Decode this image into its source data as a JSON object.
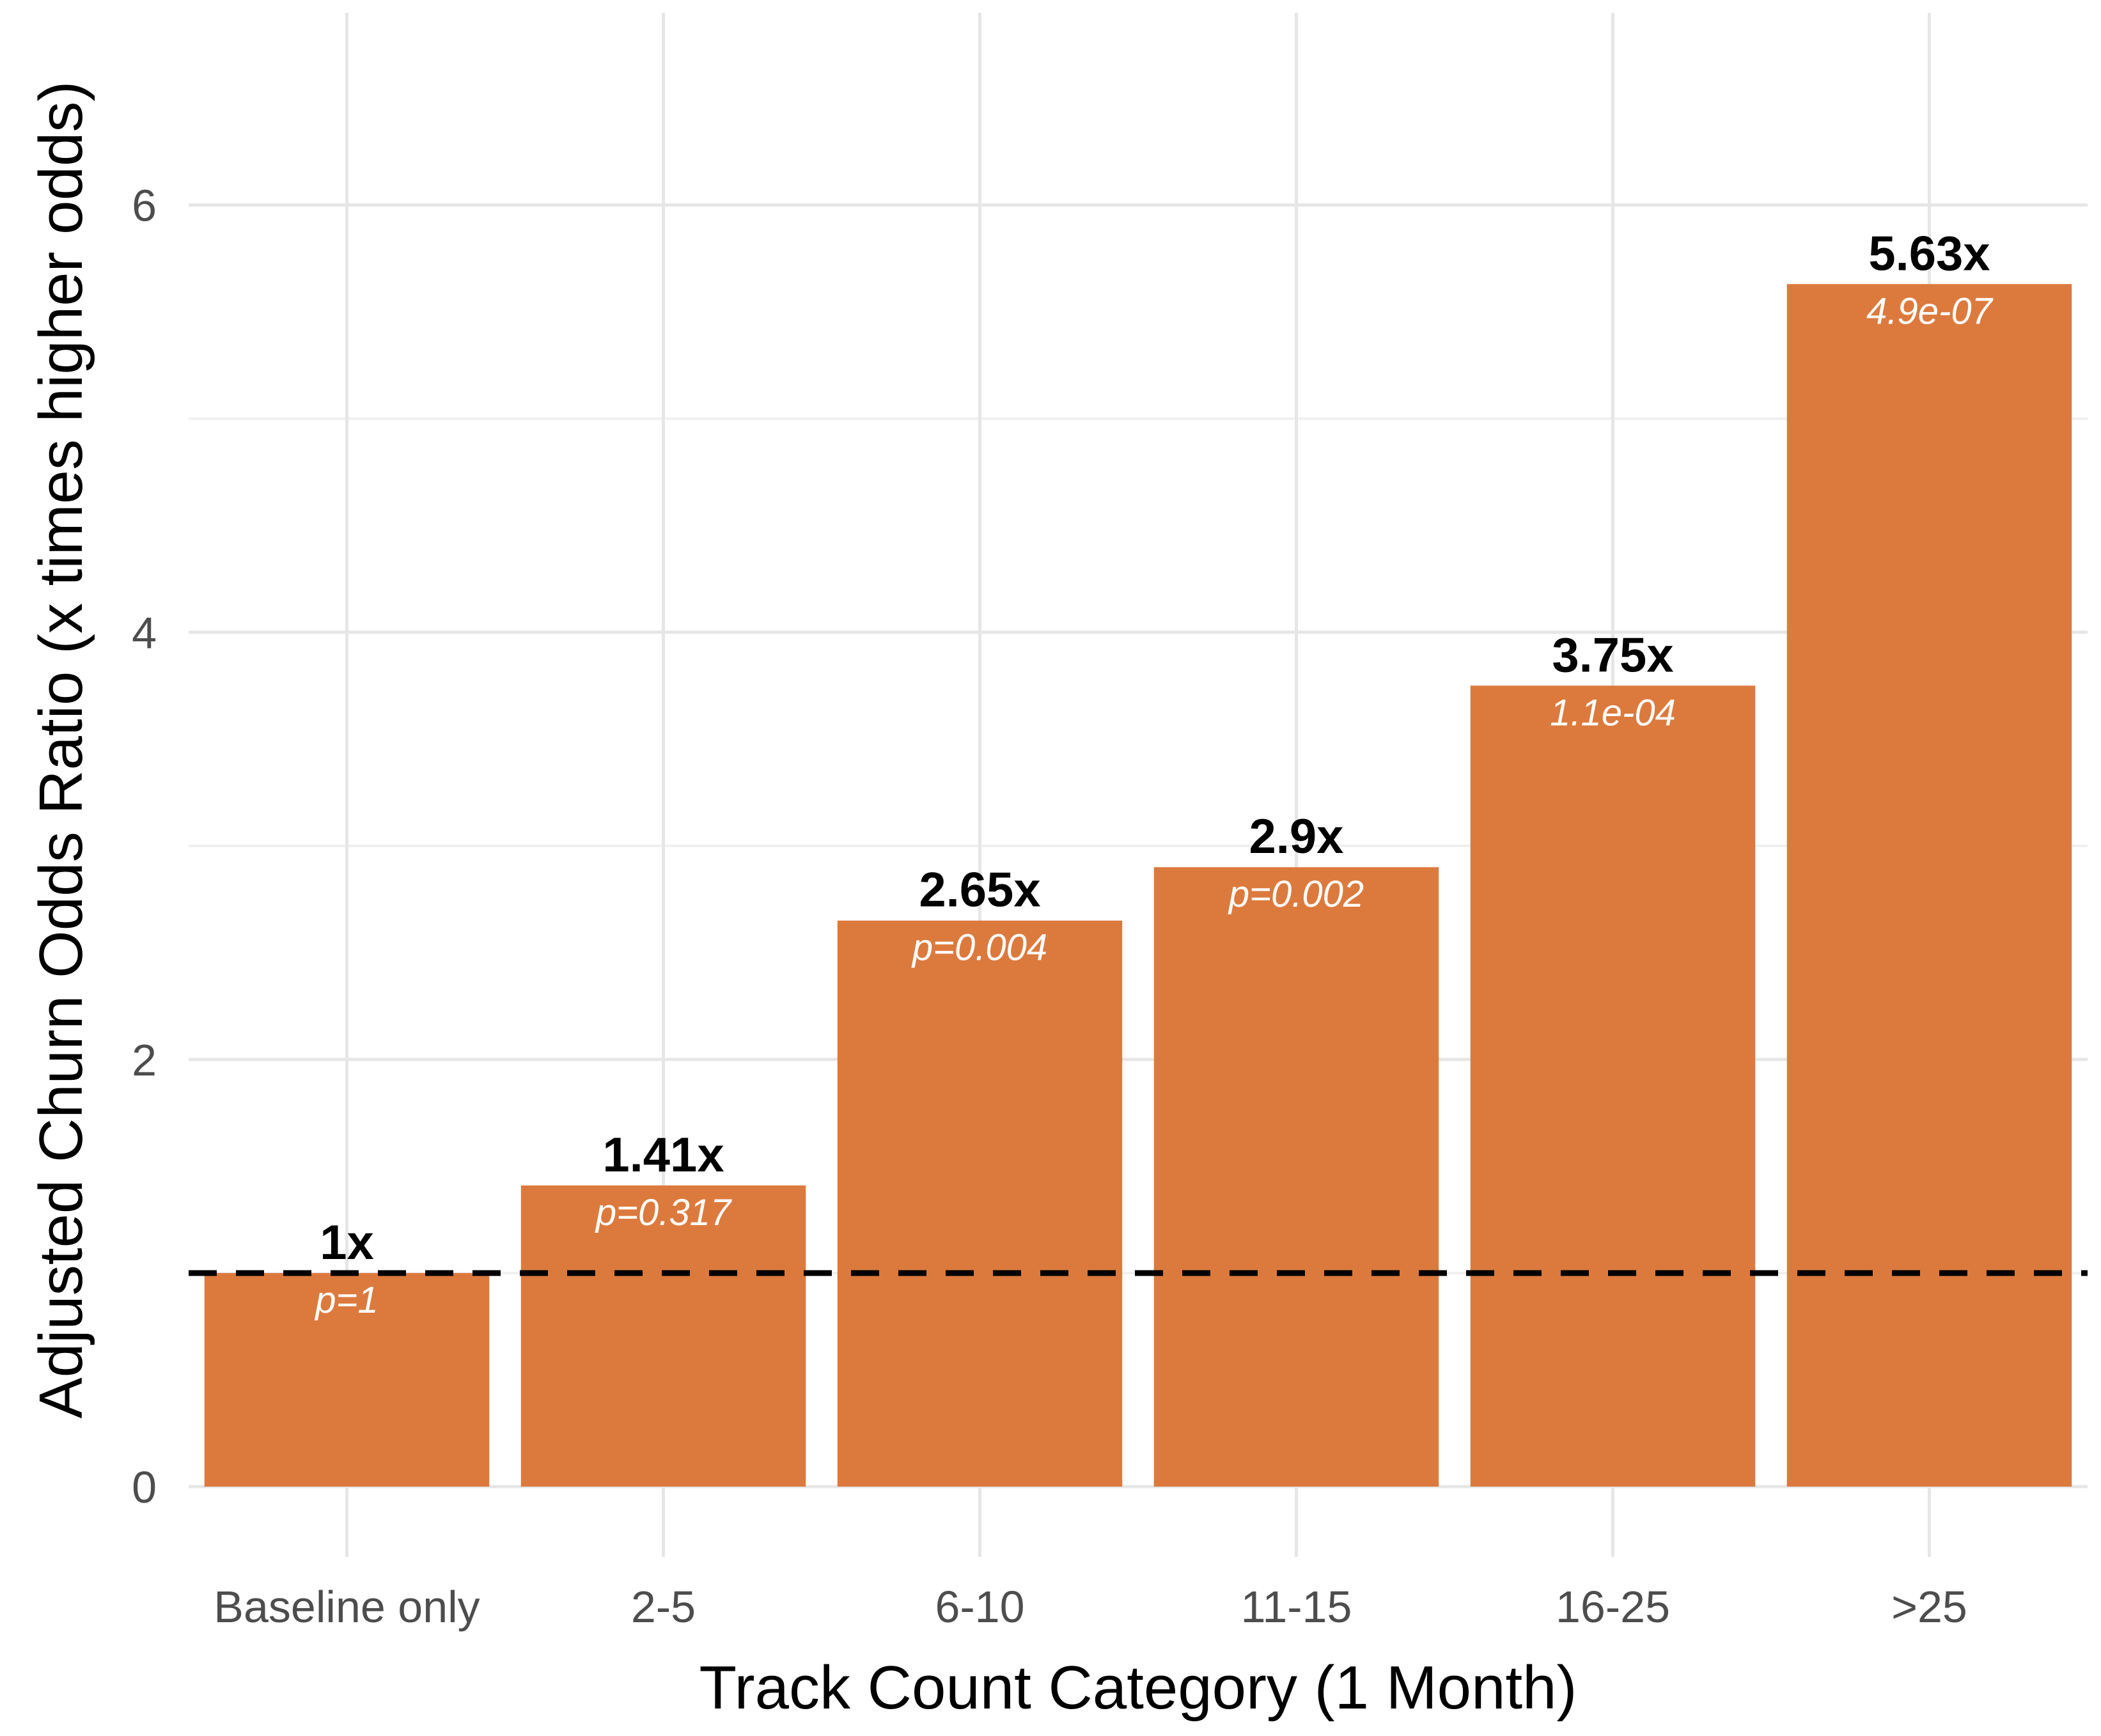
{
  "chart_data": {
    "type": "bar",
    "title": "",
    "xlabel": "Track Count Category (1 Month)",
    "ylabel": "Adjusted Churn Odds Ratio (x times higher odds)",
    "categories": [
      "Baseline only",
      "2-5",
      "6-10",
      "11-15",
      "16-25",
      ">25"
    ],
    "values": [
      1,
      1.41,
      2.65,
      2.9,
      3.75,
      5.63
    ],
    "value_labels": [
      "1x",
      "1.41x",
      "2.65x",
      "2.9x",
      "3.75x",
      "5.63x"
    ],
    "p_labels": [
      "p=1",
      "p=0.317",
      "p=0.004",
      "p=0.002",
      "1.1e-04",
      "4.9e-07"
    ],
    "yticks": [
      "0",
      "2",
      "4",
      "6"
    ],
    "ylim": [
      0,
      6.9
    ],
    "reference_line": 1,
    "grid": true,
    "legend": "none",
    "bar_color": "#DC7A3E"
  }
}
